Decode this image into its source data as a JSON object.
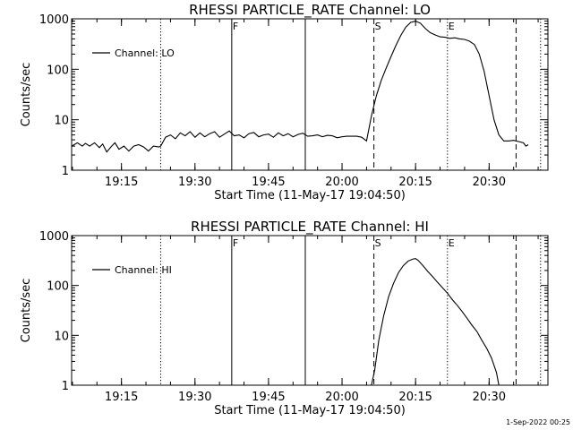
{
  "footer": {
    "timestamp": "1-Sep-2022 00:25"
  },
  "chart_data": [
    {
      "type": "line",
      "title": "RHESSI PARTICLE_RATE Channel: LO",
      "xlabel": "Start Time (11-May-17 19:04:50)",
      "ylabel": "Counts/sec",
      "y_scale": "log",
      "xlim": [
        "19:04:50",
        "20:42:00"
      ],
      "ylim": [
        1,
        1000
      ],
      "x_ticks": [
        "19:15",
        "19:30",
        "19:45",
        "20:00",
        "20:15",
        "20:30"
      ],
      "y_ticks": [
        "1",
        "10",
        "100",
        "1000"
      ],
      "legend": {
        "label": "Channel: LO",
        "position": "upper-left"
      },
      "series": [
        {
          "name": "Channel: LO",
          "color": "#000000",
          "x": [
            "19:04:50",
            "19:06:00",
            "19:07:00",
            "19:07:40",
            "19:08:30",
            "19:09:30",
            "19:10:30",
            "19:11:10",
            "19:12:00",
            "19:13:00",
            "19:13:40",
            "19:14:30",
            "19:15:30",
            "19:16:30",
            "19:17:30",
            "19:18:30",
            "19:19:30",
            "19:20:30",
            "19:21:30",
            "19:22:40",
            "19:23:00",
            "19:24:00",
            "19:25:00",
            "19:26:00",
            "19:27:00",
            "19:28:00",
            "19:29:00",
            "19:30:00",
            "19:31:00",
            "19:32:00",
            "19:33:00",
            "19:34:00",
            "19:35:00",
            "19:36:00",
            "19:37:00",
            "19:38:00",
            "19:39:00",
            "19:40:00",
            "19:41:00",
            "19:42:00",
            "19:43:00",
            "19:44:00",
            "19:45:00",
            "19:46:00",
            "19:47:00",
            "19:48:00",
            "19:49:00",
            "19:50:00",
            "19:51:00",
            "19:52:00",
            "19:53:00",
            "19:54:00",
            "19:55:00",
            "19:56:00",
            "19:57:00",
            "19:58:00",
            "19:59:00",
            "20:00:00",
            "20:01:00",
            "20:02:00",
            "20:03:00",
            "20:04:00",
            "20:05:00",
            "20:06:00",
            "20:07:00",
            "20:08:00",
            "20:09:00",
            "20:10:00",
            "20:11:00",
            "20:12:00",
            "20:13:00",
            "20:14:00",
            "20:15:00",
            "20:16:00",
            "20:17:00",
            "20:18:00",
            "20:19:00",
            "20:20:00",
            "20:21:00",
            "20:22:00",
            "20:23:00",
            "20:24:00",
            "20:25:00",
            "20:26:00",
            "20:27:00",
            "20:28:00",
            "20:29:00",
            "20:30:00",
            "20:31:00",
            "20:32:00",
            "20:33:00",
            "20:34:00",
            "20:35:00",
            "20:36:00",
            "20:37:00",
            "20:37:30",
            "20:38:00"
          ],
          "y": [
            3.0,
            3.5,
            3.0,
            3.4,
            3.0,
            3.5,
            2.8,
            3.3,
            2.3,
            3.0,
            3.5,
            2.6,
            3.0,
            2.4,
            3.0,
            3.2,
            2.9,
            2.4,
            3.0,
            2.9,
            3.0,
            4.5,
            5.0,
            4.2,
            5.5,
            4.8,
            5.8,
            4.5,
            5.5,
            4.6,
            5.3,
            5.8,
            4.5,
            5.2,
            6.0,
            4.8,
            5.0,
            4.4,
            5.3,
            5.6,
            4.6,
            5.0,
            5.2,
            4.5,
            5.5,
            4.8,
            5.3,
            4.6,
            5.1,
            5.4,
            4.7,
            4.8,
            5.0,
            4.6,
            4.9,
            4.8,
            4.4,
            4.6,
            4.7,
            4.7,
            4.7,
            4.5,
            3.8,
            12,
            30,
            60,
            105,
            180,
            300,
            470,
            680,
            850,
            900,
            820,
            640,
            530,
            480,
            440,
            430,
            410,
            420,
            400,
            390,
            360,
            310,
            200,
            90,
            30,
            10,
            5.0,
            3.8,
            3.8,
            3.9,
            3.7,
            3.5,
            3.0,
            3.2
          ],
          "dashed": false
        }
      ],
      "markers": [
        {
          "time": "19:23:00",
          "style": "dotted",
          "label": ""
        },
        {
          "time": "19:37:30",
          "style": "solid",
          "label": "F"
        },
        {
          "time": "19:52:30",
          "style": "solid",
          "label": ""
        },
        {
          "time": "20:06:30",
          "style": "dashed",
          "label": "S"
        },
        {
          "time": "20:21:30",
          "style": "dotted",
          "label": "E"
        },
        {
          "time": "20:35:30",
          "style": "dashed",
          "label": ""
        },
        {
          "time": "20:40:30",
          "style": "dotted",
          "label": ""
        }
      ]
    },
    {
      "type": "line",
      "title": "RHESSI PARTICLE_RATE Channel: HI",
      "xlabel": "Start Time (11-May-17 19:04:50)",
      "ylabel": "Counts/sec",
      "y_scale": "log",
      "xlim": [
        "19:04:50",
        "20:42:00"
      ],
      "ylim": [
        1,
        1000
      ],
      "x_ticks": [
        "19:15",
        "19:30",
        "19:45",
        "20:00",
        "20:15",
        "20:30"
      ],
      "y_ticks": [
        "1",
        "10",
        "100",
        "1000"
      ],
      "legend": {
        "label": "Channel: HI",
        "position": "upper-left"
      },
      "series": [
        {
          "name": "Channel: HI",
          "color": "#000000",
          "x": [
            "20:06:00",
            "20:06:40",
            "20:07:30",
            "20:08:30",
            "20:09:30",
            "20:10:30",
            "20:11:30",
            "20:12:30",
            "20:13:30",
            "20:14:30",
            "20:15:00",
            "20:15:30",
            "20:16:30",
            "20:17:30",
            "20:18:30",
            "20:19:30",
            "20:20:30",
            "20:21:30",
            "20:22:30",
            "20:23:30",
            "20:24:30",
            "20:25:30",
            "20:26:30",
            "20:27:30",
            "20:28:30",
            "20:29:30",
            "20:30:30",
            "20:31:30",
            "20:32:00"
          ],
          "y": [
            1.0,
            2.0,
            8,
            25,
            60,
            110,
            180,
            250,
            310,
            340,
            345,
            320,
            250,
            190,
            150,
            115,
            90,
            70,
            52,
            40,
            30,
            22,
            16,
            12,
            8,
            5.5,
            3.5,
            1.8,
            1.0
          ],
          "dashed": false
        }
      ],
      "markers": [
        {
          "time": "19:23:00",
          "style": "dotted",
          "label": ""
        },
        {
          "time": "19:37:30",
          "style": "solid",
          "label": "F"
        },
        {
          "time": "19:52:30",
          "style": "solid",
          "label": ""
        },
        {
          "time": "20:06:30",
          "style": "dashed",
          "label": "S"
        },
        {
          "time": "20:21:30",
          "style": "dotted",
          "label": "E"
        },
        {
          "time": "20:35:30",
          "style": "dashed",
          "label": ""
        },
        {
          "time": "20:40:30",
          "style": "dotted",
          "label": ""
        }
      ]
    }
  ]
}
